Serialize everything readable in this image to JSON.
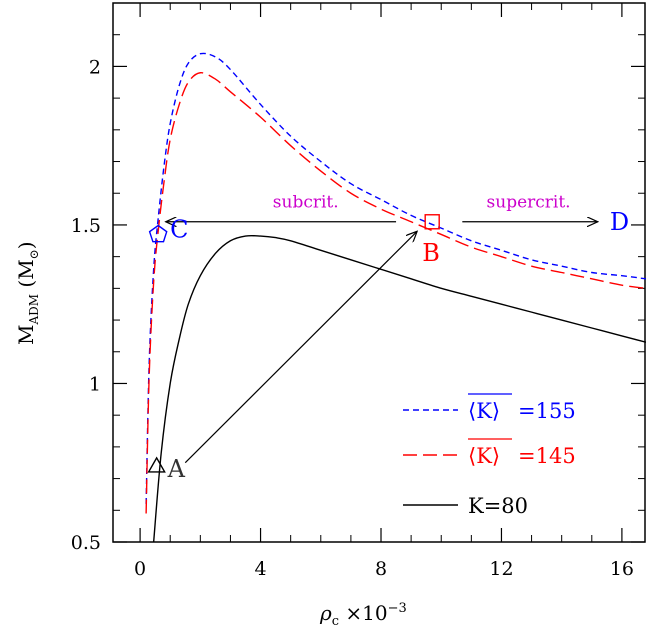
{
  "chart_data": {
    "type": "line",
    "xlabel": "ρ",
    "xlabel_sub": "c",
    "xlabel_scale": "×10",
    "xlabel_exp": "−3",
    "ylabel": "M",
    "ylabel_sub": "ADM",
    "ylabel_unit_open": "(M",
    "ylabel_unit_sub": "⊙",
    "ylabel_unit_close": ")",
    "xlim": [
      -0.9,
      16.8
    ],
    "ylim": [
      0.5,
      2.2
    ],
    "xticks": [
      0,
      4,
      8,
      12,
      16
    ],
    "yticks": [
      0.5,
      1,
      1.5,
      2
    ],
    "xtick_labels": [
      "0",
      "4",
      "8",
      "12",
      "16"
    ],
    "ytick_labels": [
      "0.5",
      "1",
      "1.5",
      "2"
    ],
    "grid": false,
    "legend_position": "bottom-right",
    "series": [
      {
        "key": "k155",
        "name": "=155",
        "name_symbol": "K",
        "color": "#0000ff",
        "dash": "6,4",
        "x": [
          0.2,
          0.3,
          0.45,
          0.6,
          0.8,
          1.0,
          1.3,
          1.6,
          2.0,
          2.5,
          3.0,
          4.0,
          5.0,
          6.0,
          7.0,
          8.0,
          9.0,
          10.0,
          11.0,
          12.0,
          13.0,
          14.0,
          15.0,
          16.0,
          16.8
        ],
        "y": [
          0.62,
          1.06,
          1.36,
          1.52,
          1.69,
          1.82,
          1.94,
          2.01,
          2.04,
          2.03,
          1.99,
          1.88,
          1.78,
          1.7,
          1.63,
          1.58,
          1.53,
          1.49,
          1.45,
          1.42,
          1.39,
          1.37,
          1.35,
          1.34,
          1.33
        ]
      },
      {
        "key": "k145",
        "name": "=145",
        "name_symbol": "K",
        "color": "#ff0000",
        "dash": "14,6",
        "x": [
          0.2,
          0.3,
          0.45,
          0.6,
          0.8,
          1.0,
          1.3,
          1.6,
          2.0,
          2.5,
          3.0,
          4.0,
          5.0,
          6.0,
          7.0,
          8.0,
          9.0,
          10.0,
          11.0,
          12.0,
          13.0,
          14.0,
          15.0,
          16.0,
          16.8
        ],
        "y": [
          0.59,
          1.02,
          1.32,
          1.48,
          1.64,
          1.77,
          1.88,
          1.95,
          1.98,
          1.96,
          1.92,
          1.84,
          1.75,
          1.67,
          1.6,
          1.55,
          1.51,
          1.47,
          1.43,
          1.4,
          1.37,
          1.35,
          1.33,
          1.31,
          1.3
        ]
      },
      {
        "key": "k80",
        "name": "K=80",
        "color": "#000000",
        "dash": "",
        "x": [
          0.45,
          0.7,
          1.0,
          1.3,
          1.6,
          2.0,
          2.5,
          3.0,
          3.5,
          4.0,
          4.5,
          5.0,
          6.0,
          7.0,
          8.0,
          9.0,
          10.0,
          11.0,
          12.0,
          13.0,
          14.0,
          15.0,
          16.0,
          16.8
        ],
        "y": [
          0.5,
          0.78,
          1.0,
          1.14,
          1.25,
          1.34,
          1.41,
          1.45,
          1.465,
          1.465,
          1.46,
          1.45,
          1.42,
          1.39,
          1.36,
          1.33,
          1.3,
          1.275,
          1.25,
          1.225,
          1.2,
          1.175,
          1.15,
          1.13
        ]
      }
    ],
    "points": [
      {
        "label": "A",
        "x": 0.55,
        "y": 0.74,
        "marker": "triangle",
        "color": "#000000",
        "label_color": "#333333"
      },
      {
        "label": "B",
        "x": 9.7,
        "y": 1.51,
        "marker": "square",
        "color": "#ff0000",
        "label_color": "#ff0000"
      },
      {
        "label": "C",
        "x": 0.6,
        "y": 1.47,
        "marker": "pentagon",
        "color": "#0000ff",
        "label_color": "#0000ff"
      },
      {
        "label": "D",
        "x": 15.6,
        "y": 1.51,
        "marker": "none",
        "color": "#0000ff",
        "label_color": "#0000ff"
      }
    ],
    "annotations": [
      {
        "text": "subcrit.",
        "x": 5.5,
        "y": 1.555,
        "color": "#cc00cc"
      },
      {
        "text": "supercrit.",
        "x": 12.9,
        "y": 1.555,
        "color": "#cc00cc"
      }
    ],
    "arrows": [
      {
        "from": [
          0.85,
          1.51
        ],
        "to": [
          8.5,
          1.51
        ],
        "head": "from"
      },
      {
        "from": [
          10.7,
          1.51
        ],
        "to": [
          15.2,
          1.51
        ],
        "head": "to"
      },
      {
        "from": [
          1.5,
          0.75
        ],
        "to": [
          9.2,
          1.48
        ],
        "head": "to"
      }
    ]
  }
}
